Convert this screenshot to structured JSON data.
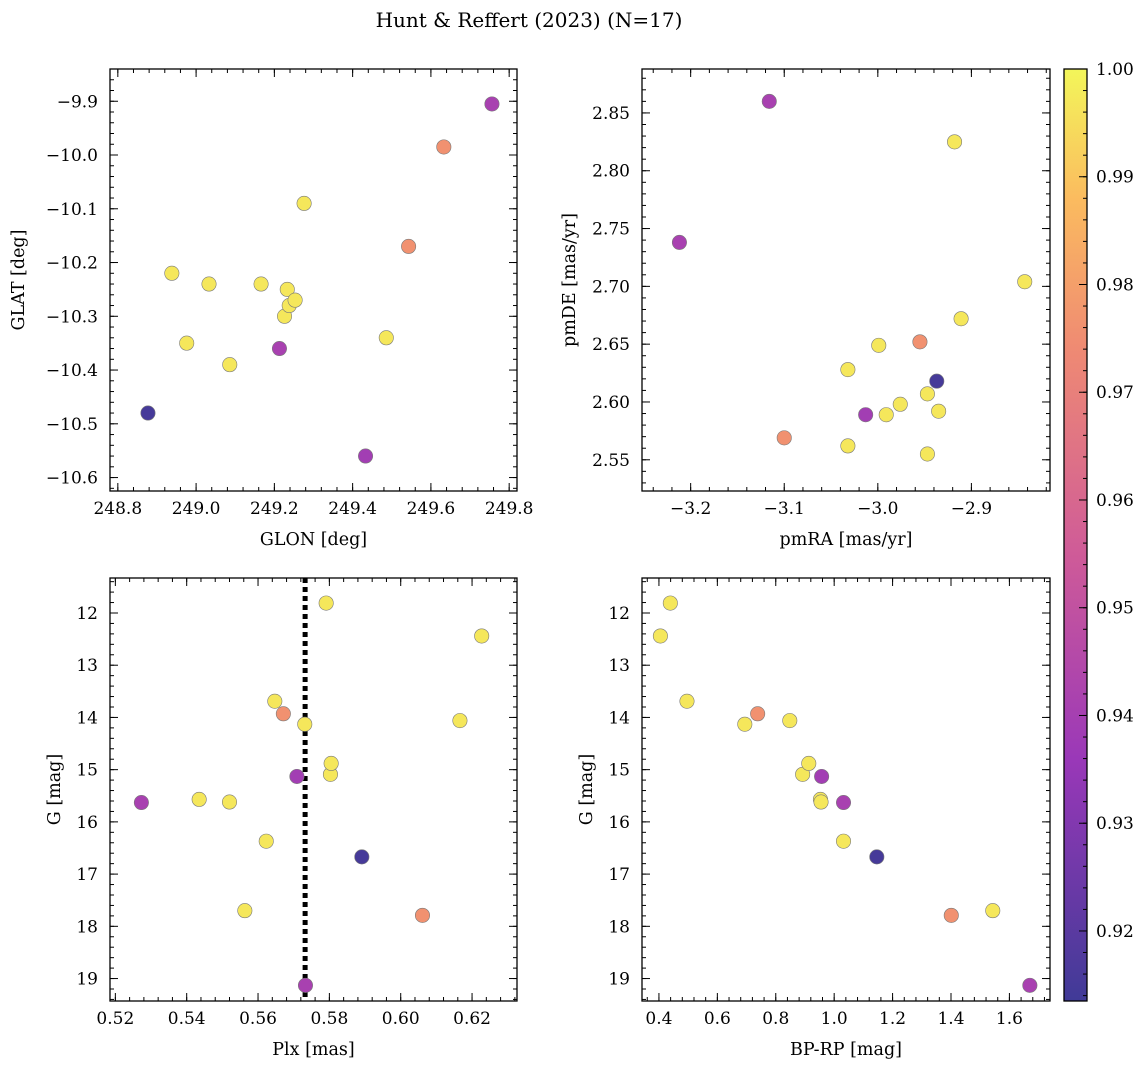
{
  "figure": {
    "title": "Hunt & Reffert (2023) (N=17)"
  },
  "colorbar": {
    "cmap": "plasma",
    "vmin": 0.9135,
    "vmax": 1.0,
    "ticks": [
      0.92,
      0.93,
      0.94,
      0.95,
      0.96,
      0.97,
      0.98,
      0.99,
      1.0
    ],
    "tick_labels": [
      "0.92",
      "0.93",
      "0.94",
      "0.95",
      "0.96",
      "0.97",
      "0.98",
      "0.99",
      "1.00"
    ]
  },
  "chart_data": [
    {
      "type": "scatter",
      "id": "glon-glat",
      "xlabel": "GLON [deg]",
      "ylabel": "GLAT [deg]",
      "xlim": [
        248.78,
        249.82
      ],
      "ylim": [
        -10.625,
        -9.84
      ],
      "invert_y": false,
      "x_ticks": [
        248.8,
        249.0,
        249.2,
        249.4,
        249.6,
        249.8
      ],
      "x_tick_labels": [
        "248.8",
        "249.0",
        "249.2",
        "249.4",
        "249.6",
        "249.8"
      ],
      "x_minor_step": 0.04,
      "y_ticks": [
        -10.6,
        -10.5,
        -10.4,
        -10.3,
        -10.2,
        -10.1,
        -10.0,
        -9.9
      ],
      "y_tick_labels": [
        "−10.6",
        "−10.5",
        "−10.4",
        "−10.3",
        "−10.2",
        "−10.1",
        "−10.0",
        "−9.9"
      ],
      "y_minor_step": 0.02,
      "x": [
        248.877,
        248.938,
        248.976,
        249.033,
        249.086,
        249.166,
        249.213,
        249.226,
        249.233,
        249.238,
        249.253,
        249.276,
        249.433,
        249.486,
        249.543,
        249.633,
        249.756
      ],
      "y": [
        -10.48,
        -10.22,
        -10.35,
        -10.24,
        -10.39,
        -10.24,
        -10.36,
        -10.3,
        -10.25,
        -10.28,
        -10.27,
        -10.09,
        -10.56,
        -10.34,
        -10.17,
        -9.985,
        -9.905
      ],
      "c": [
        0.915,
        0.997,
        0.997,
        0.997,
        0.997,
        0.997,
        0.941,
        0.997,
        0.997,
        0.997,
        0.997,
        0.997,
        0.939,
        0.997,
        0.976,
        0.976,
        0.941
      ]
    },
    {
      "type": "scatter",
      "id": "pmra-pmde",
      "xlabel": "pmRA [mas/yr]",
      "ylabel": "pmDE [mas/yr]",
      "xlim": [
        -3.252,
        -2.816
      ],
      "ylim": [
        2.523,
        2.888
      ],
      "invert_y": false,
      "x_ticks": [
        -3.2,
        -3.1,
        -3.0,
        -2.9
      ],
      "x_tick_labels": [
        "−3.2",
        "−3.1",
        "−3.0",
        "−2.9"
      ],
      "x_minor_step": 0.02,
      "y_ticks": [
        2.55,
        2.6,
        2.65,
        2.7,
        2.75,
        2.8,
        2.85
      ],
      "y_tick_labels": [
        "2.55",
        "2.60",
        "2.65",
        "2.70",
        "2.75",
        "2.80",
        "2.85"
      ],
      "y_minor_step": 0.01,
      "x": [
        -3.212,
        -3.116,
        -3.1,
        -3.032,
        -3.032,
        -3.013,
        -2.999,
        -2.991,
        -2.976,
        -2.955,
        -2.947,
        -2.947,
        -2.937,
        -2.935,
        -2.918,
        -2.911,
        -2.843
      ],
      "y": [
        2.738,
        2.86,
        2.569,
        2.628,
        2.562,
        2.589,
        2.649,
        2.589,
        2.598,
        2.652,
        2.607,
        2.555,
        2.618,
        2.592,
        2.825,
        2.672,
        2.704
      ],
      "c": [
        0.941,
        0.941,
        0.976,
        0.997,
        0.997,
        0.939,
        0.997,
        0.997,
        0.997,
        0.976,
        0.997,
        0.997,
        0.915,
        0.997,
        0.997,
        0.997,
        0.997
      ]
    },
    {
      "type": "scatter",
      "id": "plx-g",
      "xlabel": "Plx [mas]",
      "ylabel": "G [mag]",
      "xlim": [
        0.5185,
        0.6326
      ],
      "ylim": [
        11.33,
        19.43
      ],
      "invert_y": true,
      "x_ticks": [
        0.52,
        0.54,
        0.56,
        0.58,
        0.6,
        0.62
      ],
      "x_tick_labels": [
        "0.52",
        "0.54",
        "0.56",
        "0.58",
        "0.60",
        "0.62"
      ],
      "x_minor_step": 0.004,
      "y_ticks": [
        12,
        13,
        14,
        15,
        16,
        17,
        18,
        19
      ],
      "y_tick_labels": [
        "12",
        "13",
        "14",
        "15",
        "16",
        "17",
        "18",
        "19"
      ],
      "y_minor_step": 0.2,
      "vline": 0.5732,
      "x": [
        0.5273,
        0.5435,
        0.552,
        0.5563,
        0.5623,
        0.5647,
        0.5671,
        0.5709,
        0.5731,
        0.5733,
        0.5791,
        0.5803,
        0.5805,
        0.5891,
        0.6061,
        0.6166,
        0.6227
      ],
      "y": [
        15.63,
        15.57,
        15.62,
        17.7,
        16.37,
        13.69,
        13.93,
        15.13,
        14.13,
        19.13,
        11.81,
        15.09,
        14.88,
        16.67,
        17.79,
        14.06,
        12.44
      ],
      "c": [
        0.941,
        0.997,
        0.997,
        0.997,
        0.997,
        0.997,
        0.976,
        0.939,
        0.997,
        0.941,
        0.997,
        0.997,
        0.997,
        0.915,
        0.976,
        0.997,
        0.997
      ]
    },
    {
      "type": "scatter",
      "id": "bprp-g",
      "xlabel": "BP-RP [mag]",
      "ylabel": "G [mag]",
      "xlim": [
        0.342,
        1.739
      ],
      "ylim": [
        11.33,
        19.43
      ],
      "invert_y": true,
      "x_ticks": [
        0.4,
        0.6,
        0.8,
        1.0,
        1.2,
        1.4,
        1.6
      ],
      "x_tick_labels": [
        "0.4",
        "0.6",
        "0.8",
        "1.0",
        "1.2",
        "1.4",
        "1.6"
      ],
      "x_minor_step": 0.04,
      "y_ticks": [
        12,
        13,
        14,
        15,
        16,
        17,
        18,
        19
      ],
      "y_tick_labels": [
        "12",
        "13",
        "14",
        "15",
        "16",
        "17",
        "18",
        "19"
      ],
      "y_minor_step": 0.2,
      "x": [
        0.405,
        0.439,
        0.496,
        0.694,
        0.738,
        0.848,
        0.892,
        0.913,
        0.953,
        0.955,
        0.957,
        1.032,
        1.032,
        1.146,
        1.401,
        1.543,
        1.67
      ],
      "y": [
        12.44,
        11.81,
        13.69,
        14.13,
        13.93,
        14.06,
        15.09,
        14.88,
        15.57,
        15.62,
        15.13,
        15.63,
        16.37,
        16.67,
        17.79,
        17.7,
        19.13
      ],
      "c": [
        0.997,
        0.997,
        0.997,
        0.997,
        0.976,
        0.997,
        0.997,
        0.997,
        0.997,
        0.997,
        0.939,
        0.941,
        0.997,
        0.915,
        0.976,
        0.997,
        0.941
      ]
    }
  ]
}
